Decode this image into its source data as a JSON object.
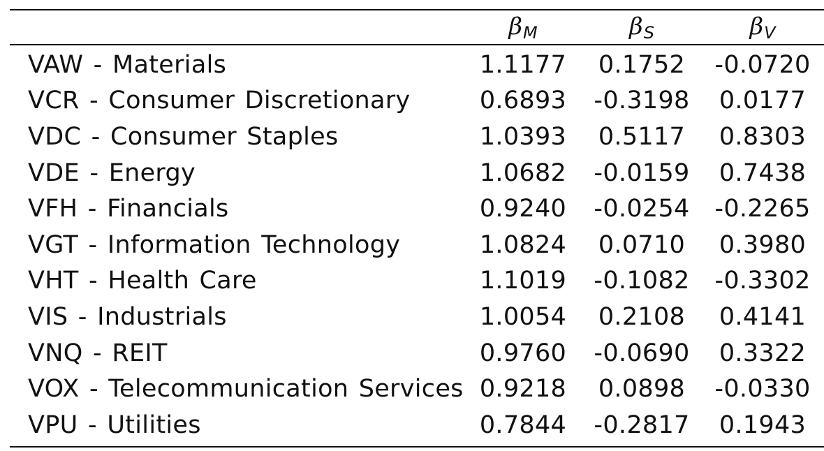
{
  "table": {
    "headers": [
      {
        "symbol": "β",
        "subscript": "M"
      },
      {
        "symbol": "β",
        "subscript": "S"
      },
      {
        "symbol": "β",
        "subscript": "V"
      }
    ],
    "rows": [
      {
        "label": "VAW - Materials",
        "beta_m": "1.1177",
        "beta_s": "0.1752",
        "beta_v": "-0.0720"
      },
      {
        "label": "VCR - Consumer Discretionary",
        "beta_m": "0.6893",
        "beta_s": "-0.3198",
        "beta_v": "0.0177"
      },
      {
        "label": "VDC - Consumer Staples",
        "beta_m": "1.0393",
        "beta_s": "0.5117",
        "beta_v": "0.8303"
      },
      {
        "label": "VDE - Energy",
        "beta_m": "1.0682",
        "beta_s": "-0.0159",
        "beta_v": "0.7438"
      },
      {
        "label": "VFH - Financials",
        "beta_m": "0.9240",
        "beta_s": "-0.0254",
        "beta_v": "-0.2265"
      },
      {
        "label": "VGT - Information Technology",
        "beta_m": "1.0824",
        "beta_s": "0.0710",
        "beta_v": "0.3980"
      },
      {
        "label": "VHT - Health Care",
        "beta_m": "1.1019",
        "beta_s": "-0.1082",
        "beta_v": "-0.3302"
      },
      {
        "label": "VIS - Industrials",
        "beta_m": "1.0054",
        "beta_s": "0.2108",
        "beta_v": "0.4141"
      },
      {
        "label": "VNQ - REIT",
        "beta_m": "0.9760",
        "beta_s": "-0.0690",
        "beta_v": "0.3322"
      },
      {
        "label": "VOX - Telecommunication Services",
        "beta_m": "0.9218",
        "beta_s": "0.0898",
        "beta_v": "-0.0330"
      },
      {
        "label": "VPU - Utilities",
        "beta_m": "0.7844",
        "beta_s": "-0.2817",
        "beta_v": "0.1943"
      }
    ]
  }
}
